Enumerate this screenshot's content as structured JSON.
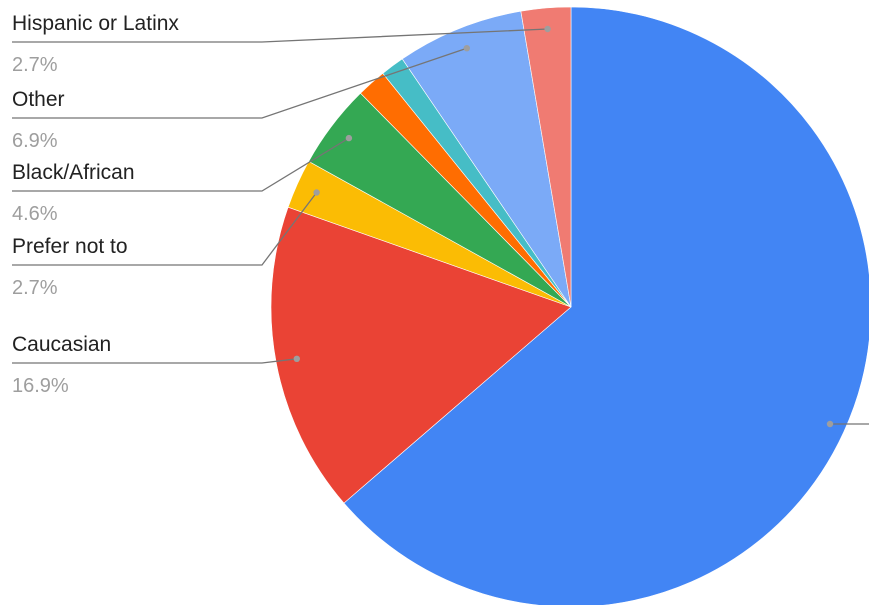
{
  "chart_data": {
    "type": "pie",
    "title": "",
    "slices": [
      {
        "name": "",
        "value": 64.3,
        "color": "#4285f4"
      },
      {
        "name": "Caucasian",
        "value": 16.9,
        "color": "#ea4335",
        "label": "Caucasian",
        "pct_label": "16.9%"
      },
      {
        "name": "Prefer not to",
        "value": 2.7,
        "color": "#fbbc04",
        "label": "Prefer not to",
        "pct_label": "2.7%"
      },
      {
        "name": "Black/African",
        "value": 4.6,
        "color": "#34a853",
        "label": "Black/African",
        "pct_label": "4.6%"
      },
      {
        "name": "",
        "value": 1.6,
        "color": "#ff6d01"
      },
      {
        "name": "",
        "value": 1.3,
        "color": "#46bdc6"
      },
      {
        "name": "Other",
        "value": 6.9,
        "color": "#7baaf7",
        "label": "Other",
        "pct_label": "6.9%"
      },
      {
        "name": "Hispanic or Latinx",
        "value": 2.7,
        "color": "#f07b72",
        "label": "Hispanic or Latinx",
        "pct_label": "2.7%"
      }
    ],
    "legend": "none",
    "label_position": "left, with leader lines"
  }
}
